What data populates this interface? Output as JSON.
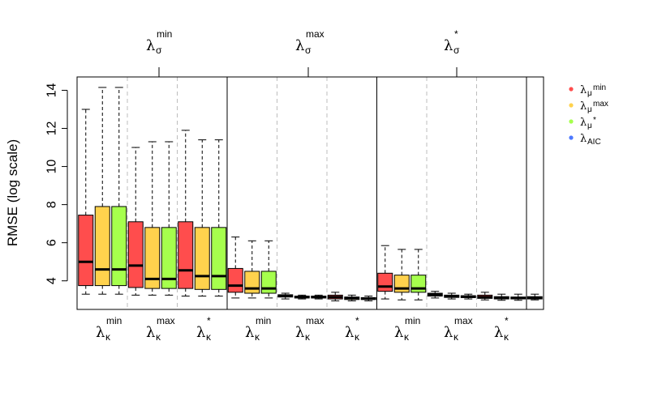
{
  "chart_data": {
    "type": "boxplot",
    "ylabel": "RMSE (log scale)",
    "ylim": [
      2.5,
      14.7
    ],
    "yticks": [
      4,
      6,
      8,
      10,
      12,
      14
    ],
    "top_groups": [
      {
        "symbol": "λ",
        "sub": "σ",
        "sup": "min"
      },
      {
        "symbol": "λ",
        "sub": "σ",
        "sup": "max"
      },
      {
        "symbol": "λ",
        "sub": "σ",
        "sup": "*"
      }
    ],
    "bottom_groups": [
      {
        "symbol": "λ",
        "sub": "κ",
        "sup": "min"
      },
      {
        "symbol": "λ",
        "sub": "κ",
        "sup": "max"
      },
      {
        "symbol": "λ",
        "sub": "κ",
        "sup": "*"
      },
      {
        "symbol": "λ",
        "sub": "κ",
        "sup": "min"
      },
      {
        "symbol": "λ",
        "sub": "κ",
        "sup": "max"
      },
      {
        "symbol": "λ",
        "sub": "κ",
        "sup": "*"
      },
      {
        "symbol": "λ",
        "sub": "κ",
        "sup": "min"
      },
      {
        "symbol": "λ",
        "sub": "κ",
        "sup": "max"
      },
      {
        "symbol": "λ",
        "sub": "κ",
        "sup": "*"
      }
    ],
    "legend": [
      {
        "symbol": "λ",
        "sub": "μ",
        "sup": "min",
        "color": "#ff4d4d"
      },
      {
        "symbol": "λ",
        "sub": "μ",
        "sup": "max",
        "color": "#ffd24d"
      },
      {
        "symbol": "λ",
        "sub": "μ",
        "sup": "*",
        "color": "#a6ff4d"
      },
      {
        "symbol": "λ",
        "sub": "AIC",
        "sup": "",
        "color": "#4d79ff"
      }
    ],
    "boxes": [
      {
        "color": "#ff4d4d",
        "wlo": 3.3,
        "q1": 3.75,
        "med": 5.0,
        "q3": 7.45,
        "whi": 13.0
      },
      {
        "color": "#ffd24d",
        "wlo": 3.3,
        "q1": 3.75,
        "med": 4.6,
        "q3": 7.9,
        "whi": 14.15
      },
      {
        "color": "#a6ff4d",
        "wlo": 3.3,
        "q1": 3.75,
        "med": 4.6,
        "q3": 7.9,
        "whi": 14.15
      },
      {
        "color": "#ff4d4d",
        "wlo": 3.25,
        "q1": 3.65,
        "med": 4.8,
        "q3": 7.1,
        "whi": 11.0
      },
      {
        "color": "#ffd24d",
        "wlo": 3.25,
        "q1": 3.6,
        "med": 4.1,
        "q3": 6.8,
        "whi": 11.3
      },
      {
        "color": "#a6ff4d",
        "wlo": 3.25,
        "q1": 3.6,
        "med": 4.1,
        "q3": 6.8,
        "whi": 11.3
      },
      {
        "color": "#ff4d4d",
        "wlo": 3.2,
        "q1": 3.6,
        "med": 4.55,
        "q3": 7.1,
        "whi": 11.9
      },
      {
        "color": "#ffd24d",
        "wlo": 3.2,
        "q1": 3.55,
        "med": 4.25,
        "q3": 6.8,
        "whi": 11.4
      },
      {
        "color": "#a6ff4d",
        "wlo": 3.2,
        "q1": 3.55,
        "med": 4.25,
        "q3": 6.8,
        "whi": 11.4
      },
      {
        "color": "#ff4d4d",
        "wlo": 3.1,
        "q1": 3.4,
        "med": 3.75,
        "q3": 4.65,
        "whi": 6.3
      },
      {
        "color": "#ffd24d",
        "wlo": 3.1,
        "q1": 3.35,
        "med": 3.6,
        "q3": 4.5,
        "whi": 6.1
      },
      {
        "color": "#a6ff4d",
        "wlo": 3.1,
        "q1": 3.35,
        "med": 3.6,
        "q3": 4.5,
        "whi": 6.1
      },
      {
        "color": "#ff4d4d",
        "wlo": 3.05,
        "q1": 3.15,
        "med": 3.2,
        "q3": 3.27,
        "whi": 3.35
      },
      {
        "color": "#ffd24d",
        "wlo": 3.05,
        "q1": 3.1,
        "med": 3.15,
        "q3": 3.2,
        "whi": 3.25
      },
      {
        "color": "#a6ff4d",
        "wlo": 3.05,
        "q1": 3.1,
        "med": 3.15,
        "q3": 3.2,
        "whi": 3.25
      },
      {
        "color": "#ff4d4d",
        "wlo": 2.95,
        "q1": 3.05,
        "med": 3.15,
        "q3": 3.25,
        "whi": 3.4
      },
      {
        "color": "#ffd24d",
        "wlo": 2.95,
        "q1": 3.02,
        "med": 3.1,
        "q3": 3.15,
        "whi": 3.25
      },
      {
        "color": "#a6ff4d",
        "wlo": 2.95,
        "q1": 3.02,
        "med": 3.07,
        "q3": 3.12,
        "whi": 3.2
      },
      {
        "color": "#ff4d4d",
        "wlo": 3.05,
        "q1": 3.45,
        "med": 3.7,
        "q3": 4.4,
        "whi": 5.85
      },
      {
        "color": "#ffd24d",
        "wlo": 3.0,
        "q1": 3.4,
        "med": 3.6,
        "q3": 4.3,
        "whi": 5.65
      },
      {
        "color": "#a6ff4d",
        "wlo": 3.0,
        "q1": 3.4,
        "med": 3.6,
        "q3": 4.3,
        "whi": 5.65
      },
      {
        "color": "#ff4d4d",
        "wlo": 3.1,
        "q1": 3.2,
        "med": 3.27,
        "q3": 3.35,
        "whi": 3.45
      },
      {
        "color": "#ffd24d",
        "wlo": 3.05,
        "q1": 3.13,
        "med": 3.18,
        "q3": 3.25,
        "whi": 3.35
      },
      {
        "color": "#a6ff4d",
        "wlo": 3.05,
        "q1": 3.12,
        "med": 3.17,
        "q3": 3.22,
        "whi": 3.3
      },
      {
        "color": "#ff4d4d",
        "wlo": 3.0,
        "q1": 3.08,
        "med": 3.15,
        "q3": 3.25,
        "whi": 3.4
      },
      {
        "color": "#ffd24d",
        "wlo": 2.98,
        "q1": 3.05,
        "med": 3.1,
        "q3": 3.17,
        "whi": 3.3
      },
      {
        "color": "#a6ff4d",
        "wlo": 2.98,
        "q1": 3.05,
        "med": 3.1,
        "q3": 3.15,
        "whi": 3.3
      },
      {
        "color": "#4d79ff",
        "wlo": 3.0,
        "q1": 3.05,
        "med": 3.1,
        "q3": 3.17,
        "whi": 3.3
      }
    ]
  }
}
